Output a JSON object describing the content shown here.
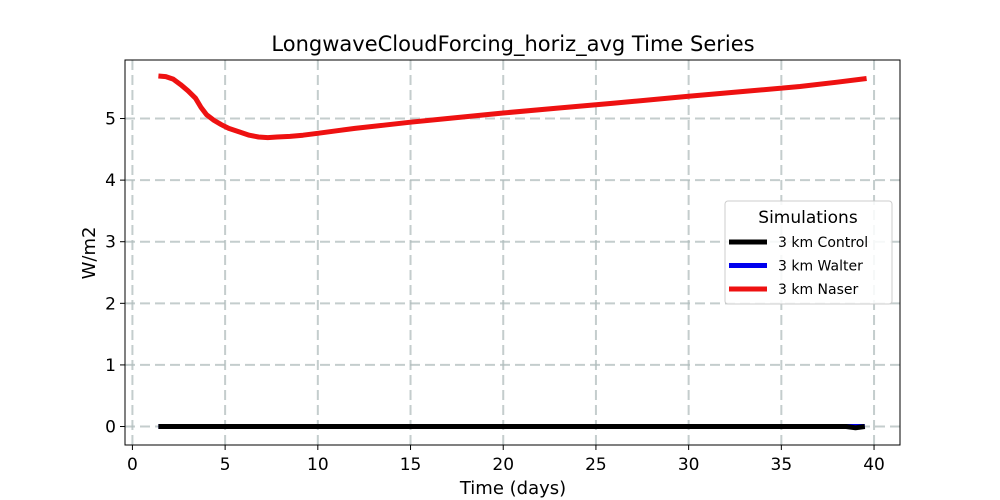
{
  "chart_data": {
    "type": "line",
    "title": "LongwaveCloudForcing_horiz_avg Time Series",
    "xlabel": "Time (days)",
    "ylabel": "W/m2",
    "xlim": [
      -0.4,
      41.4
    ],
    "ylim": [
      -0.3,
      5.95
    ],
    "xticks": [
      0,
      5,
      10,
      15,
      20,
      25,
      30,
      35,
      40
    ],
    "yticks": [
      0,
      1,
      2,
      3,
      4,
      5
    ],
    "grid": true,
    "legend": {
      "title": "Simulations",
      "placement": "center-right"
    },
    "series": [
      {
        "name": "3 km Control",
        "color": "#000000",
        "x": [
          1.4,
          5,
          10,
          15,
          20,
          25,
          30,
          35,
          38.5,
          39.0,
          39.5
        ],
        "y": [
          0,
          0,
          0,
          0,
          0,
          0,
          0,
          0,
          0,
          -0.02,
          0
        ]
      },
      {
        "name": "3 km Walter",
        "color": "#0000ee",
        "x": [
          1.4,
          5,
          10,
          15,
          20,
          25,
          30,
          35,
          39.5
        ],
        "y": [
          0,
          0,
          0,
          0,
          0,
          0,
          0,
          0,
          0
        ]
      },
      {
        "name": "3 km Naser",
        "color": "#ee1111",
        "x": [
          1.4,
          1.8,
          2.2,
          2.6,
          3.0,
          3.4,
          3.7,
          4.0,
          4.4,
          4.8,
          5.2,
          5.8,
          6.3,
          6.8,
          7.3,
          7.8,
          8.5,
          9.2,
          10.0,
          11.0,
          12.0,
          13.5,
          15.0,
          17.0,
          20.0,
          23.0,
          26.0,
          30.0,
          33.0,
          36.0,
          38.0,
          39.6
        ],
        "y": [
          5.69,
          5.68,
          5.64,
          5.55,
          5.45,
          5.33,
          5.18,
          5.06,
          4.97,
          4.9,
          4.84,
          4.78,
          4.73,
          4.7,
          4.69,
          4.7,
          4.71,
          4.73,
          4.76,
          4.8,
          4.84,
          4.89,
          4.94,
          5.0,
          5.09,
          5.17,
          5.25,
          5.36,
          5.44,
          5.52,
          5.59,
          5.65
        ]
      }
    ]
  }
}
